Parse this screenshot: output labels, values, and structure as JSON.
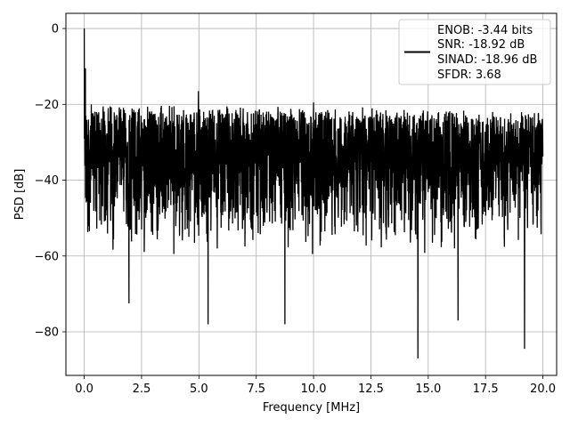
{
  "chart_data": {
    "type": "line",
    "title": "",
    "xlabel": "Frequency [MHz]",
    "ylabel": "PSD [dB]",
    "xlim": [
      -0.8,
      20.6
    ],
    "ylim": [
      -91.5,
      4.0
    ],
    "xticks": [
      0.0,
      2.5,
      5.0,
      7.5,
      10.0,
      12.5,
      15.0,
      17.5,
      20.0
    ],
    "xtick_labels": [
      "0.0",
      "2.5",
      "5.0",
      "7.5",
      "10.0",
      "12.5",
      "15.0",
      "17.5",
      "20.0"
    ],
    "yticks": [
      0,
      -20,
      -40,
      -60,
      -80
    ],
    "ytick_labels": [
      "0",
      "−20",
      "−40",
      "−60",
      "−80"
    ],
    "grid": true,
    "legend_position": "top-right",
    "legend_lines": [
      "ENOB: -3.44 bits",
      "SNR: -18.92 dB",
      "SINAD: -18.96 dB",
      "SFDR: 3.68"
    ],
    "series": [
      {
        "color": "#000000",
        "x_range": [
          0.0,
          20.0
        ],
        "peak": {
          "x": 0.0,
          "y": 0.0
        },
        "upper_envelope_db": -22,
        "lower_envelope_db": -58,
        "spurs": [
          {
            "x": 0.05,
            "y": -10.5
          },
          {
            "x": 4.98,
            "y": -16.5
          },
          {
            "x": 10.0,
            "y": -19.5
          },
          {
            "x": 19.8,
            "y": -22.5
          }
        ],
        "dips": [
          {
            "x": 1.95,
            "y": -72.5
          },
          {
            "x": 5.4,
            "y": -78.0
          },
          {
            "x": 8.75,
            "y": -78.0
          },
          {
            "x": 14.55,
            "y": -87.0
          },
          {
            "x": 16.3,
            "y": -77.0
          },
          {
            "x": 19.2,
            "y": -84.5
          }
        ]
      }
    ]
  }
}
